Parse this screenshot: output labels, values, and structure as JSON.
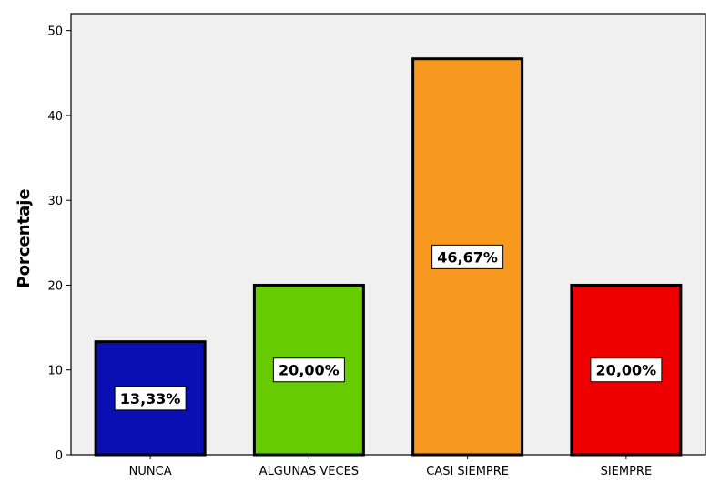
{
  "chart_data": {
    "type": "bar",
    "ylabel": "Porcentaje",
    "xlabel": "",
    "categories": [
      "NUNCA",
      "ALGUNAS VECES",
      "CASI SIEMPRE",
      "SIEMPRE"
    ],
    "values": [
      13.33,
      20.0,
      46.67,
      20.0
    ],
    "data_labels": [
      "13,33%",
      "20,00%",
      "46,67%",
      "20,00%"
    ],
    "colors": [
      "#0a0fb3",
      "#66cc00",
      "#f7981f",
      "#ee0000"
    ],
    "ylim": [
      0,
      52
    ],
    "yticks": [
      0,
      10,
      20,
      30,
      40,
      50
    ],
    "plot_background": "#f0f0f0",
    "grid": false,
    "legend": "none"
  }
}
